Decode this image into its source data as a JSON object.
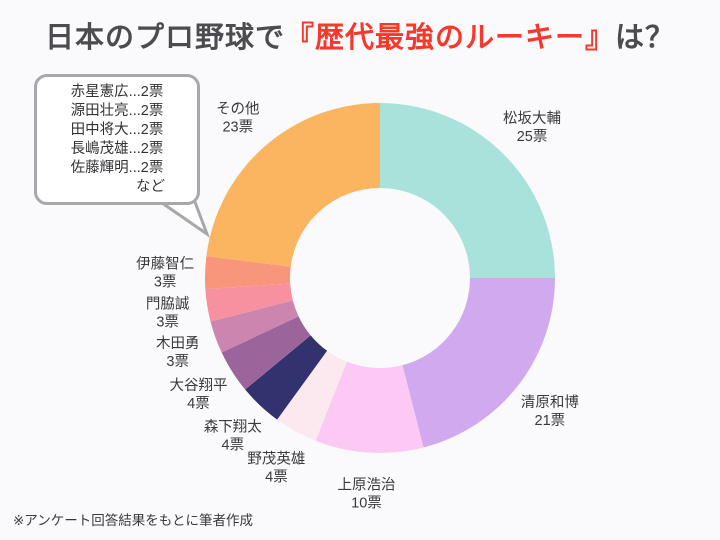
{
  "page": {
    "background": "#fafafc",
    "title": {
      "prefix": "日本のプロ野球で",
      "highlight": "『歴代最強のルーキー』",
      "suffix": "は？",
      "text_color": "#4b4b50",
      "highlight_color": "#f6392d"
    },
    "footnote": "※アンケート回答結果をもとに筆者作成"
  },
  "callout": {
    "lines": [
      "赤星憲広...2票",
      "源田壮亮...2票",
      "田中将大...2票",
      "長嶋茂雄...2票",
      "佐藤輝明...2票"
    ],
    "suffix": "など",
    "border_color": "#a7a7ac"
  },
  "chart_data": {
    "type": "pie",
    "variant": "donut",
    "title": "日本のプロ野球で『歴代最強のルーキー』は？",
    "unit": "票",
    "total": 100,
    "start_angle_deg": 0,
    "direction": "clockwise",
    "legend_position": "labels-around-slices",
    "label_color": "#3a3a3e",
    "slices": [
      {
        "label": "松坂大輔",
        "value": 25,
        "color": "#a9e2db"
      },
      {
        "label": "清原和博",
        "value": 21,
        "color": "#d0a9ef"
      },
      {
        "label": "上原浩治",
        "value": 10,
        "color": "#fcc9f4"
      },
      {
        "label": "野茂英雄",
        "value": 4,
        "color": "#fce9f0"
      },
      {
        "label": "森下翔太",
        "value": 4,
        "color": "#32336e"
      },
      {
        "label": "大谷翔平",
        "value": 4,
        "color": "#9b659b"
      },
      {
        "label": "木田勇",
        "value": 3,
        "color": "#cc85ae"
      },
      {
        "label": "門脇誠",
        "value": 3,
        "color": "#f791a0"
      },
      {
        "label": "伊藤智仁",
        "value": 3,
        "color": "#f8967b"
      },
      {
        "label": "その他",
        "value": 23,
        "color": "#fbb45f"
      }
    ],
    "others_note": "その他の内訳: 赤星憲広 2票 / 源田壮亮 2票 / 田中将大 2票 / 長嶋茂雄 2票 / 佐藤輝明 2票 など"
  }
}
